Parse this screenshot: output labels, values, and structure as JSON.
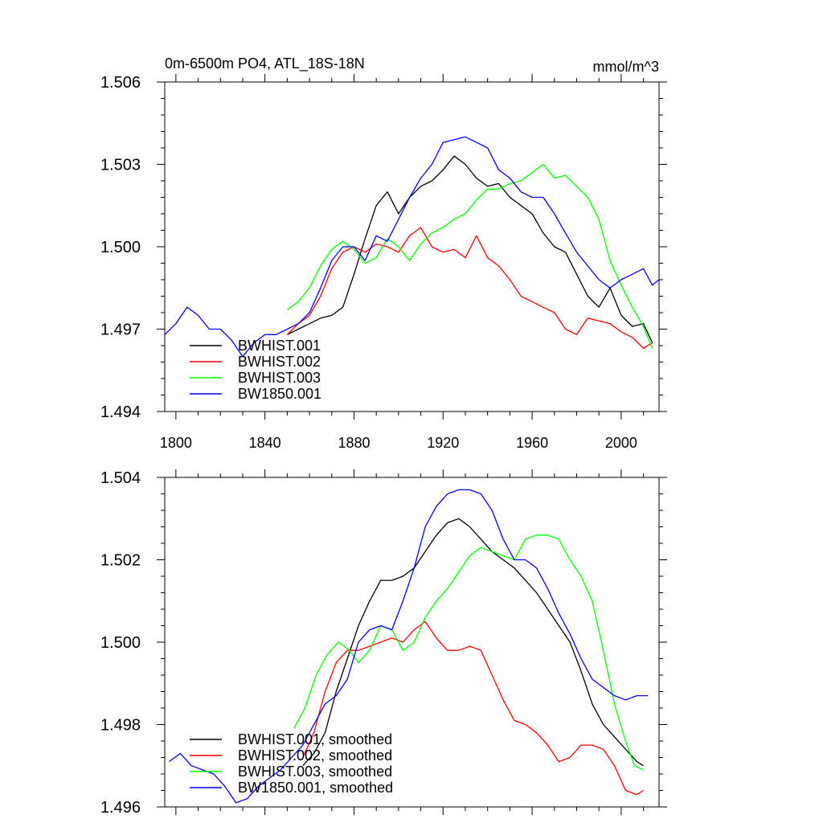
{
  "chart_data": [
    {
      "type": "line",
      "title": "0m-6500m PO4, ATL_18S-18N",
      "units": "mmol/m^3",
      "xlabel": "",
      "ylabel": "",
      "xlim": [
        1795,
        2017
      ],
      "ylim": [
        1.494,
        1.506
      ],
      "xticks": [
        1800,
        1840,
        1880,
        1920,
        1960,
        2000
      ],
      "yticks": [
        1.494,
        1.497,
        1.5,
        1.503,
        1.506
      ],
      "ytick_labels": [
        "1.494",
        "1.497",
        "1.500",
        "1.503",
        "1.506"
      ],
      "grid": false,
      "legend_position": "bottom-left",
      "series": [
        {
          "name": "BWHIST.001",
          "color": "#000000",
          "x": [
            1850,
            1855,
            1860,
            1865,
            1870,
            1875,
            1880,
            1885,
            1890,
            1895,
            1900,
            1905,
            1910,
            1915,
            1920,
            1925,
            1930,
            1935,
            1940,
            1945,
            1950,
            1955,
            1960,
            1965,
            1970,
            1975,
            1980,
            1985,
            1990,
            1995,
            2000,
            2005,
            2010,
            2014
          ],
          "values": [
            1.4968,
            1.497,
            1.4972,
            1.4974,
            1.4975,
            1.4978,
            1.499,
            1.5003,
            1.5015,
            1.502,
            1.5012,
            1.5018,
            1.5022,
            1.5024,
            1.5028,
            1.5033,
            1.503,
            1.5025,
            1.5022,
            1.5023,
            1.5018,
            1.5015,
            1.5012,
            1.5005,
            1.5,
            1.4998,
            1.499,
            1.4982,
            1.4978,
            1.4985,
            1.4975,
            1.4971,
            1.4972,
            1.4965
          ]
        },
        {
          "name": "BWHIST.002",
          "color": "#ff0000",
          "x": [
            1850,
            1855,
            1860,
            1865,
            1870,
            1875,
            1880,
            1885,
            1890,
            1895,
            1900,
            1905,
            1910,
            1915,
            1920,
            1925,
            1930,
            1935,
            1940,
            1945,
            1950,
            1955,
            1960,
            1965,
            1970,
            1975,
            1980,
            1985,
            1990,
            1995,
            2000,
            2005,
            2010,
            2014
          ],
          "values": [
            1.4968,
            1.4972,
            1.4975,
            1.4982,
            1.4992,
            1.4998,
            1.5,
            1.4998,
            1.5001,
            1.5,
            1.4998,
            1.5004,
            1.5007,
            1.5,
            1.4998,
            1.4999,
            1.4996,
            1.5004,
            1.4996,
            1.4993,
            1.4988,
            1.4982,
            1.498,
            1.4978,
            1.4976,
            1.497,
            1.4968,
            1.4974,
            1.4973,
            1.4972,
            1.4969,
            1.4967,
            1.4963,
            1.4965
          ]
        },
        {
          "name": "BWHIST.003",
          "color": "#00ff00",
          "x": [
            1850,
            1855,
            1860,
            1865,
            1870,
            1875,
            1880,
            1885,
            1890,
            1895,
            1900,
            1905,
            1910,
            1915,
            1920,
            1925,
            1930,
            1935,
            1940,
            1945,
            1950,
            1955,
            1960,
            1965,
            1970,
            1975,
            1980,
            1985,
            1990,
            1995,
            2000,
            2005,
            2010,
            2014
          ],
          "values": [
            1.4977,
            1.498,
            1.4985,
            1.4993,
            1.4999,
            1.5002,
            1.4999,
            1.4994,
            1.4996,
            1.5003,
            1.5,
            1.4995,
            1.5001,
            1.5005,
            1.5007,
            1.501,
            1.5012,
            1.5017,
            1.5021,
            1.5021,
            1.5023,
            1.5024,
            1.5027,
            1.503,
            1.5025,
            1.5026,
            1.5022,
            1.5018,
            1.501,
            1.4995,
            1.4986,
            1.4978,
            1.4971,
            1.4963
          ]
        },
        {
          "name": "BW1850.001",
          "color": "#0000ff",
          "x": [
            1795,
            1800,
            1805,
            1810,
            1815,
            1820,
            1825,
            1830,
            1835,
            1840,
            1845,
            1850,
            1855,
            1860,
            1865,
            1870,
            1875,
            1880,
            1885,
            1890,
            1895,
            1900,
            1905,
            1910,
            1915,
            1920,
            1925,
            1930,
            1935,
            1940,
            1945,
            1950,
            1955,
            1960,
            1965,
            1970,
            1975,
            1980,
            1985,
            1990,
            1995,
            2000,
            2005,
            2010,
            2014,
            2017
          ],
          "values": [
            1.4968,
            1.4972,
            1.4978,
            1.4975,
            1.497,
            1.497,
            1.4966,
            1.496,
            1.4965,
            1.4968,
            1.4968,
            1.497,
            1.4972,
            1.4976,
            1.4985,
            1.4995,
            1.5,
            1.5,
            1.4995,
            1.5004,
            1.5002,
            1.501,
            1.5018,
            1.5025,
            1.503,
            1.5038,
            1.5039,
            1.504,
            1.5038,
            1.5036,
            1.5028,
            1.5025,
            1.502,
            1.5018,
            1.5018,
            1.5012,
            1.5005,
            1.4998,
            1.4993,
            1.4988,
            1.4985,
            1.4988,
            1.499,
            1.4992,
            1.4986,
            1.4988
          ]
        }
      ]
    },
    {
      "type": "line",
      "title": "",
      "xlabel": "",
      "ylabel": "",
      "xlim": [
        1795,
        2017
      ],
      "ylim": [
        1.496,
        1.504
      ],
      "xticks": [
        1800,
        1840,
        1880,
        1920,
        1960,
        2000
      ],
      "yticks": [
        1.496,
        1.498,
        1.5,
        1.502,
        1.504
      ],
      "ytick_labels": [
        "1.496",
        "1.498",
        "1.500",
        "1.502",
        "1.504"
      ],
      "grid": false,
      "legend_position": "bottom-left",
      "series": [
        {
          "name": "BWHIST.001, smoothed",
          "color": "#000000",
          "x": [
            1857,
            1862,
            1867,
            1872,
            1877,
            1882,
            1887,
            1892,
            1897,
            1902,
            1907,
            1912,
            1917,
            1922,
            1927,
            1932,
            1937,
            1942,
            1947,
            1952,
            1957,
            1962,
            1967,
            1972,
            1977,
            1982,
            1987,
            1992,
            1997,
            2002,
            2007,
            2010
          ],
          "values": [
            1.497,
            1.4973,
            1.4978,
            1.4988,
            1.4996,
            1.5004,
            1.501,
            1.5015,
            1.5015,
            1.5016,
            1.5018,
            1.5022,
            1.5026,
            1.5029,
            1.503,
            1.5028,
            1.5025,
            1.5022,
            1.502,
            1.5018,
            1.5015,
            1.5012,
            1.5008,
            1.5004,
            1.5,
            1.4993,
            1.4985,
            1.498,
            1.4977,
            1.4974,
            1.4971,
            1.497
          ]
        },
        {
          "name": "BWHIST.002, smoothed",
          "color": "#ff0000",
          "x": [
            1857,
            1862,
            1867,
            1872,
            1877,
            1882,
            1887,
            1892,
            1897,
            1902,
            1907,
            1912,
            1917,
            1922,
            1927,
            1932,
            1937,
            1942,
            1947,
            1952,
            1957,
            1962,
            1967,
            1972,
            1977,
            1982,
            1987,
            1992,
            1997,
            2002,
            2007,
            2010
          ],
          "values": [
            1.4972,
            1.4978,
            1.4988,
            1.4995,
            1.4998,
            1.4998,
            1.4999,
            1.5,
            1.5001,
            1.5,
            1.5003,
            1.5005,
            1.5001,
            1.4998,
            1.4998,
            1.4999,
            1.4998,
            1.4992,
            1.4986,
            1.4981,
            1.498,
            1.4978,
            1.4975,
            1.4971,
            1.4972,
            1.4975,
            1.4975,
            1.4974,
            1.497,
            1.4964,
            1.4963,
            1.4964
          ]
        },
        {
          "name": "BWHIST.003, smoothed",
          "color": "#00ff00",
          "x": [
            1853,
            1858,
            1863,
            1868,
            1873,
            1878,
            1882,
            1887,
            1892,
            1897,
            1902,
            1907,
            1912,
            1917,
            1922,
            1927,
            1932,
            1937,
            1942,
            1947,
            1952,
            1957,
            1962,
            1967,
            1972,
            1977,
            1982,
            1987,
            1992,
            1997,
            2002,
            2006,
            2010
          ],
          "values": [
            1.4979,
            1.4984,
            1.4992,
            1.4997,
            1.5,
            1.4998,
            1.4995,
            1.4998,
            1.5004,
            1.5003,
            1.4998,
            1.5,
            1.5006,
            1.501,
            1.5013,
            1.5017,
            1.5021,
            1.5023,
            1.5022,
            1.5021,
            1.502,
            1.5025,
            1.5026,
            1.5026,
            1.5025,
            1.502,
            1.5016,
            1.501,
            1.4998,
            1.4985,
            1.4976,
            1.497,
            1.4969
          ]
        },
        {
          "name": "BW1850.001, smoothed",
          "color": "#0000ff",
          "x": [
            1797,
            1802,
            1807,
            1812,
            1817,
            1822,
            1827,
            1832,
            1837,
            1842,
            1847,
            1852,
            1857,
            1862,
            1867,
            1872,
            1877,
            1882,
            1887,
            1892,
            1897,
            1902,
            1907,
            1912,
            1917,
            1922,
            1927,
            1932,
            1937,
            1942,
            1947,
            1952,
            1957,
            1962,
            1967,
            1972,
            1977,
            1982,
            1987,
            1992,
            1997,
            2002,
            2007,
            2012
          ],
          "values": [
            1.4971,
            1.4973,
            1.497,
            1.4969,
            1.4968,
            1.4965,
            1.4961,
            1.4962,
            1.4965,
            1.4967,
            1.4969,
            1.4972,
            1.4975,
            1.498,
            1.4985,
            1.4987,
            1.4991,
            1.5,
            1.5003,
            1.5004,
            1.5003,
            1.501,
            1.5018,
            1.5028,
            1.5033,
            1.5036,
            1.5037,
            1.5037,
            1.5036,
            1.5032,
            1.5025,
            1.502,
            1.502,
            1.5018,
            1.5013,
            1.5007,
            1.5002,
            1.4996,
            1.4991,
            1.4989,
            1.4987,
            1.4986,
            1.4987,
            1.4987
          ]
        }
      ]
    }
  ]
}
